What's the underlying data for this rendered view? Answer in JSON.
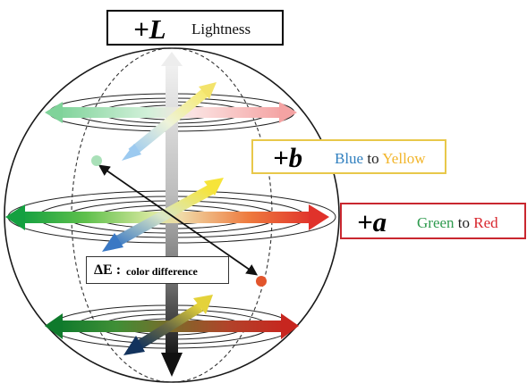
{
  "axes": {
    "lightness": {
      "symbol": "+L",
      "label": "Lightness"
    },
    "b": {
      "symbol": "+b",
      "from": "Blue",
      "to": "Yellow",
      "joiner": "to"
    },
    "a": {
      "symbol": "+a",
      "from": "Green",
      "to": "Red",
      "joiner": "to"
    }
  },
  "delta_e": {
    "symbol": "ΔE :",
    "label": "color difference"
  },
  "colors": {
    "green": "#1f9a3a",
    "red": "#e0322b",
    "yellow": "#f4e04a",
    "blue": "#3a78c4",
    "light_gray": "#e6e6e6",
    "dark_gray": "#222222",
    "a_border": "#c9272f",
    "b_border": "#e8c84a",
    "point_start": "#a9e0b8",
    "point_end": "#e2552c"
  },
  "icons": [
    "sphere-outline",
    "axis-arrow",
    "difference-vector"
  ]
}
